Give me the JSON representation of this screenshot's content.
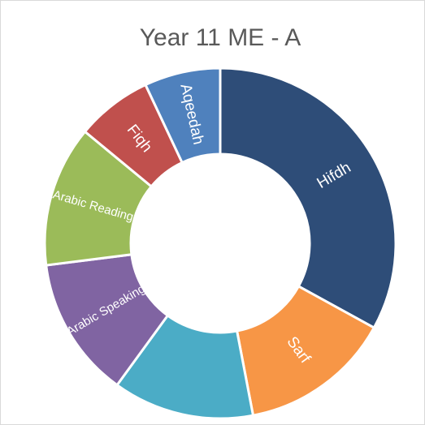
{
  "chart_data": {
    "type": "donut",
    "title": "Year 11 ME - A",
    "categories": [
      "Hifdh",
      "Sarf",
      null,
      "Arabic Speaking",
      "Arabic Reading",
      "Fiqh",
      "Aqeedah"
    ],
    "values": [
      33,
      14,
      13,
      13,
      13,
      7,
      7
    ],
    "colors": [
      "#2e4d78",
      "#f79646",
      "#4bacc6",
      "#8064a2",
      "#9bbb59",
      "#c0504d",
      "#4f81bd"
    ]
  }
}
